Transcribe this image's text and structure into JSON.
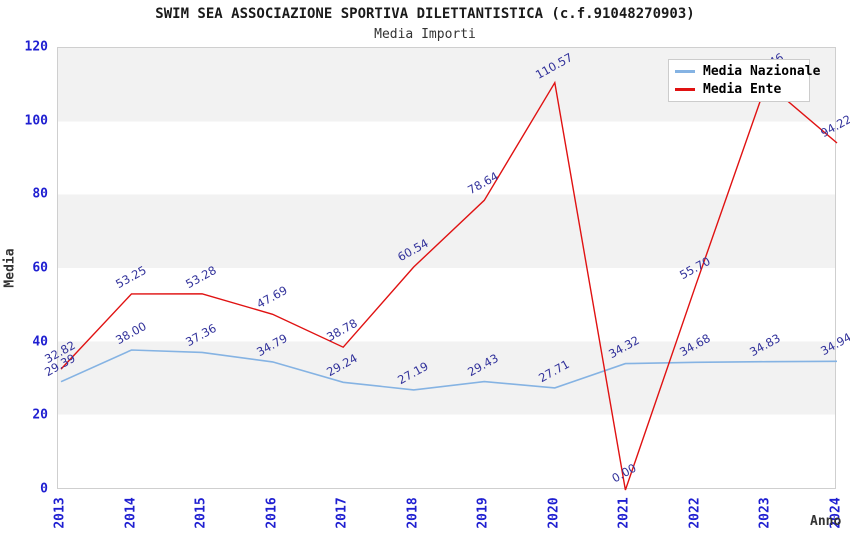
{
  "title": "SWIM SEA ASSOCIAZIONE SPORTIVA DILETTANTISTICA (c.f.91048270903)",
  "subtitle": "Media Importi",
  "chart_data": {
    "type": "line",
    "title": "SWIM SEA ASSOCIAZIONE SPORTIVA DILETTANTISTICA (c.f.91048270903)",
    "subtitle": "Media Importi",
    "xlabel": "Anno",
    "ylabel": "Media",
    "x": [
      2013,
      2014,
      2015,
      2016,
      2017,
      2018,
      2019,
      2020,
      2021,
      2022,
      2023,
      2024
    ],
    "ylim": [
      0,
      120
    ],
    "yticks": [
      0,
      20,
      40,
      60,
      80,
      100,
      120
    ],
    "grid": "alternating horizontal gray bands every 20 units",
    "legend_position": "top-right",
    "series": [
      {
        "name": "Media Nazionale",
        "color": "#85b3e3",
        "values": [
          29.39,
          38.0,
          37.36,
          34.79,
          29.24,
          27.19,
          29.43,
          27.71,
          34.32,
          34.68,
          34.83,
          34.94
        ]
      },
      {
        "name": "Media Ente",
        "color": "#e01212",
        "values": [
          32.82,
          53.25,
          53.28,
          47.69,
          38.78,
          60.54,
          78.64,
          110.57,
          0.0,
          55.7,
          110.46,
          94.22
        ]
      }
    ],
    "point_label_color": "#32329b",
    "tick_color": "#1f1fd1",
    "note": "Point labels rotated ~-29deg; 2023 Media Ente label mostly hidden behind legend (only '46' visible); 2024 labels clipped at right edge"
  }
}
